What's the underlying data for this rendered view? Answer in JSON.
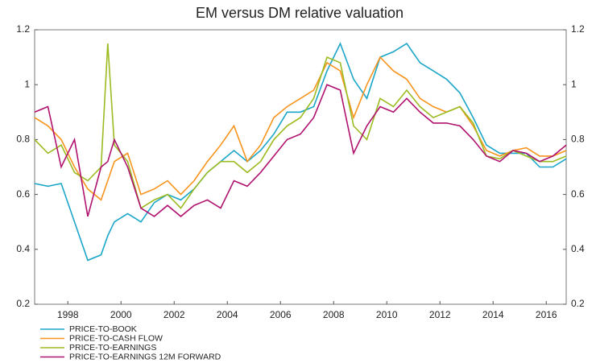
{
  "chart_data": {
    "type": "line",
    "title": "EM versus DM relative valuation",
    "x": [
      1996.75,
      1997.25,
      1997.75,
      1998.25,
      1998.75,
      1999.25,
      1999.5,
      1999.75,
      2000.25,
      2000.75,
      2001.25,
      2001.75,
      2002.25,
      2002.75,
      2003.25,
      2003.75,
      2004.25,
      2004.75,
      2005.25,
      2005.75,
      2006.25,
      2006.75,
      2007.25,
      2007.75,
      2008.25,
      2008.75,
      2009.25,
      2009.75,
      2010.25,
      2010.75,
      2011.25,
      2011.75,
      2012.25,
      2012.75,
      2013.25,
      2013.75,
      2014.25,
      2014.75,
      2015.25,
      2015.75,
      2016.25,
      2016.75
    ],
    "series": [
      {
        "name": "PRICE-TO-BOOK",
        "color": "#1ba6c9",
        "values": [
          0.64,
          0.63,
          0.64,
          0.5,
          0.36,
          0.38,
          0.45,
          0.5,
          0.53,
          0.5,
          0.57,
          0.6,
          0.58,
          0.62,
          0.68,
          0.72,
          0.76,
          0.72,
          0.76,
          0.82,
          0.9,
          0.9,
          0.92,
          1.05,
          1.15,
          1.02,
          0.95,
          1.1,
          1.12,
          1.15,
          1.08,
          1.05,
          1.02,
          0.97,
          0.88,
          0.78,
          0.75,
          0.75,
          0.75,
          0.7,
          0.7,
          0.73
        ]
      },
      {
        "name": "PRICE-TO-CASH FLOW",
        "color": "#f7941d",
        "values": [
          0.88,
          0.85,
          0.8,
          0.7,
          0.62,
          0.58,
          0.65,
          0.72,
          0.75,
          0.6,
          0.62,
          0.65,
          0.6,
          0.65,
          0.72,
          0.78,
          0.85,
          0.72,
          0.78,
          0.88,
          0.92,
          0.95,
          0.98,
          1.08,
          1.05,
          0.88,
          1.0,
          1.1,
          1.05,
          1.02,
          0.95,
          0.92,
          0.9,
          0.92,
          0.85,
          0.76,
          0.74,
          0.76,
          0.77,
          0.74,
          0.74,
          0.76
        ]
      },
      {
        "name": "PRICE-TO-EARNINGS",
        "color": "#9bbb21",
        "values": [
          0.8,
          0.75,
          0.78,
          0.68,
          0.65,
          0.7,
          1.15,
          0.78,
          0.72,
          0.55,
          0.58,
          0.6,
          0.55,
          0.62,
          0.68,
          0.72,
          0.72,
          0.68,
          0.72,
          0.8,
          0.85,
          0.88,
          0.95,
          1.1,
          1.08,
          0.85,
          0.8,
          0.95,
          0.92,
          0.98,
          0.92,
          0.88,
          0.9,
          0.92,
          0.86,
          0.74,
          0.73,
          0.76,
          0.74,
          0.72,
          0.72,
          0.74
        ]
      },
      {
        "name": "PRICE-TO-EARNINGS 12M FORWARD",
        "color": "#b0126f",
        "values": [
          0.9,
          0.92,
          0.7,
          0.8,
          0.52,
          0.7,
          0.72,
          0.8,
          0.7,
          0.55,
          0.52,
          0.56,
          0.52,
          0.56,
          0.58,
          0.55,
          0.65,
          0.63,
          0.68,
          0.74,
          0.8,
          0.82,
          0.88,
          1.0,
          0.98,
          0.75,
          0.85,
          0.92,
          0.9,
          0.95,
          0.9,
          0.86,
          0.86,
          0.85,
          0.8,
          0.74,
          0.72,
          0.76,
          0.75,
          0.72,
          0.74,
          0.78
        ]
      }
    ],
    "xlim": [
      1996.75,
      2016.75
    ],
    "xticks": [
      1998,
      2000,
      2002,
      2004,
      2006,
      2008,
      2010,
      2012,
      2014,
      2016
    ],
    "ylim": [
      0.2,
      1.2
    ],
    "yticks": [
      0.2,
      0.4,
      0.6,
      0.8,
      1.0,
      1.2
    ],
    "y2lim": [
      0.2,
      1.2
    ],
    "y2ticks": [
      0.2,
      0.4,
      0.6,
      0.8,
      1.0,
      1.2
    ],
    "legend": "bottom-left"
  }
}
